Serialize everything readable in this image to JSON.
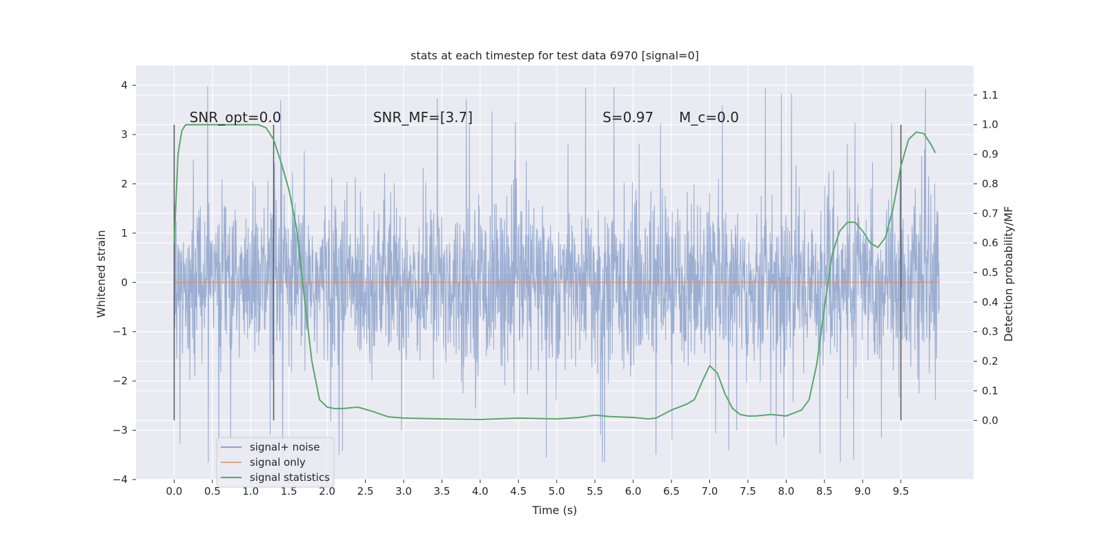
{
  "chart_data": {
    "type": "line",
    "title": "stats at each timestep for test data 6970 [signal=0]",
    "xlabel": "Time (s)",
    "ylabel_left": "Whitened strain",
    "ylabel_right": "Detection probability/MF",
    "xlim": [
      -0.5,
      10.45
    ],
    "ylim_left": [
      -4.0,
      4.4
    ],
    "ylim_right": [
      -0.2,
      1.2
    ],
    "x_ticks": [
      "0.0",
      "0.5",
      "1.0",
      "1.5",
      "2.0",
      "2.5",
      "3.0",
      "3.5",
      "4.0",
      "4.5",
      "5.0",
      "5.5",
      "6.0",
      "6.5",
      "7.0",
      "7.5",
      "8.0",
      "8.5",
      "9.0",
      "9.5"
    ],
    "y_ticks_left": [
      "4",
      "3",
      "2",
      "1",
      "0",
      "−1",
      "−2",
      "−3",
      "−4"
    ],
    "y_ticks_right": [
      "1.1",
      "1.0",
      "0.9",
      "0.8",
      "0.7",
      "0.6",
      "0.5",
      "0.4",
      "0.3",
      "0.2",
      "0.1",
      "0.0"
    ],
    "grid": true,
    "legend_position": "lower-left",
    "colors": {
      "noise": "#4c72b0",
      "signal": "#dd8452",
      "stats": "#55a868",
      "markers": "#555555",
      "background": "#eaeaf2"
    },
    "annotations": [
      {
        "text": "SNR_opt=0.0",
        "x": 0.2,
        "y": 3.25
      },
      {
        "text": "SNR_MF=[3.7]",
        "x": 2.6,
        "y": 3.25
      },
      {
        "text": "S=0.97",
        "x": 5.6,
        "y": 3.25
      },
      {
        "text": "M_c=0.0",
        "x": 6.6,
        "y": 3.25
      }
    ],
    "vertical_markers": [
      0.0,
      1.3,
      9.5
    ],
    "series": [
      {
        "name": "signal+ noise",
        "axis": "left",
        "x_range": [
          0.0,
          10.0
        ],
        "amplitude_typical": 1.4,
        "noise_max": 4.05,
        "noise_min": -3.65
      },
      {
        "name": "signal only",
        "axis": "left",
        "x": [
          0.0,
          10.0
        ],
        "values": [
          0.0,
          0.0
        ]
      },
      {
        "name": "signal statistics",
        "axis": "right",
        "x": [
          0.0,
          0.05,
          0.1,
          0.15,
          0.2,
          0.3,
          0.5,
          0.8,
          1.0,
          1.1,
          1.2,
          1.3,
          1.4,
          1.5,
          1.6,
          1.7,
          1.8,
          1.9,
          2.0,
          2.1,
          2.2,
          2.4,
          2.6,
          2.8,
          3.0,
          3.5,
          4.0,
          4.5,
          5.0,
          5.3,
          5.5,
          5.7,
          6.0,
          6.2,
          6.3,
          6.5,
          6.7,
          6.8,
          6.9,
          7.0,
          7.1,
          7.2,
          7.3,
          7.4,
          7.5,
          7.6,
          7.8,
          8.0,
          8.2,
          8.3,
          8.4,
          8.5,
          8.6,
          8.7,
          8.8,
          8.9,
          9.0,
          9.1,
          9.2,
          9.3,
          9.4,
          9.5,
          9.6,
          9.7,
          9.8,
          9.9,
          9.95
        ],
        "values": [
          0.6,
          0.9,
          0.98,
          1.0,
          1.0,
          1.0,
          1.0,
          1.0,
          1.0,
          1.0,
          0.99,
          0.95,
          0.87,
          0.78,
          0.65,
          0.42,
          0.2,
          0.07,
          0.045,
          0.04,
          0.04,
          0.045,
          0.03,
          0.012,
          0.008,
          0.005,
          0.003,
          0.008,
          0.005,
          0.01,
          0.018,
          0.013,
          0.01,
          0.005,
          0.008,
          0.035,
          0.055,
          0.07,
          0.13,
          0.185,
          0.16,
          0.09,
          0.04,
          0.02,
          0.015,
          0.015,
          0.02,
          0.015,
          0.035,
          0.07,
          0.19,
          0.38,
          0.56,
          0.64,
          0.67,
          0.67,
          0.64,
          0.6,
          0.585,
          0.62,
          0.72,
          0.86,
          0.95,
          0.975,
          0.97,
          0.93,
          0.905
        ]
      }
    ]
  }
}
